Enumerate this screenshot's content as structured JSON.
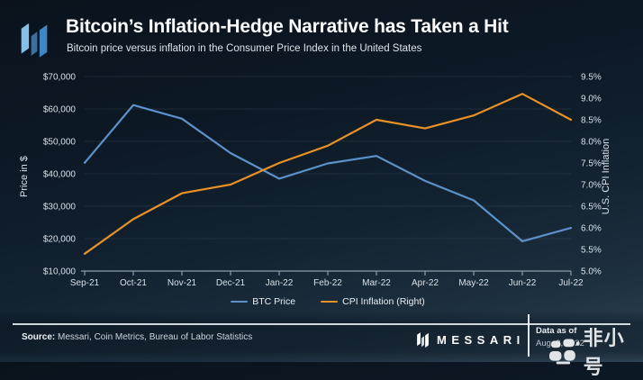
{
  "header": {
    "title": "Bitcoin’s Inflation-Hedge Narrative has Taken a Hit",
    "subtitle": "Bitcoin price versus inflation in the Consumer Price Index in the United States"
  },
  "chart_data": {
    "type": "line",
    "categories": [
      "Sep-21",
      "Oct-21",
      "Nov-21",
      "Dec-21",
      "Jan-22",
      "Feb-22",
      "Mar-22",
      "Apr-22",
      "May-22",
      "Jun-22",
      "Jul-22"
    ],
    "series": [
      {
        "name": "BTC Price",
        "axis": "left",
        "color": "#5d91c9",
        "values": [
          43400,
          61200,
          57000,
          46400,
          38500,
          43200,
          45500,
          37800,
          31800,
          19200,
          23300
        ]
      },
      {
        "name": "CPI Inflation (Right)",
        "axis": "right",
        "color": "#e89127",
        "values": [
          5.4,
          6.2,
          6.8,
          7.0,
          7.5,
          7.9,
          8.5,
          8.3,
          8.6,
          9.1,
          8.5
        ]
      }
    ],
    "left_axis": {
      "label": "Price in $",
      "min": 10000,
      "max": 70000,
      "tick_step": 10000,
      "ticks": [
        "$10,000",
        "$20,000",
        "$30,000",
        "$40,000",
        "$50,000",
        "$60,000",
        "$70,000"
      ]
    },
    "right_axis": {
      "label": "U.S. CPI Inflation",
      "min": 5.0,
      "max": 9.5,
      "tick_step": 0.5,
      "ticks": [
        "5.0%",
        "5.5%",
        "6.0%",
        "6.5%",
        "7.0%",
        "7.5%",
        "8.0%",
        "8.5%",
        "9.0%",
        "9.5%"
      ]
    },
    "grid": true,
    "legend_position": "bottom"
  },
  "footer": {
    "source_label": "Source:",
    "source_text": " Messari, Coin Metrics, Bureau of Labor Statistics",
    "brand_name": "MESSARI",
    "data_as_of_label": "Data as of",
    "data_as_of_date": "Aug. 3, 2022"
  },
  "watermark": {
    "text": "非小号"
  },
  "colors": {
    "btc_line": "#5d91c9",
    "cpi_line": "#e89127",
    "background_top": "#0a131c",
    "background_bottom": "#2e4354",
    "axis_text": "#d9e0e7",
    "grid_line": "rgba(255,255,255,0.08)",
    "axis_line": "#8f9ca8",
    "logo_blue_light": "#86c0e8",
    "logo_blue_mid": "#3c6e9e",
    "logo_blue_dark": "#3f86c6"
  }
}
